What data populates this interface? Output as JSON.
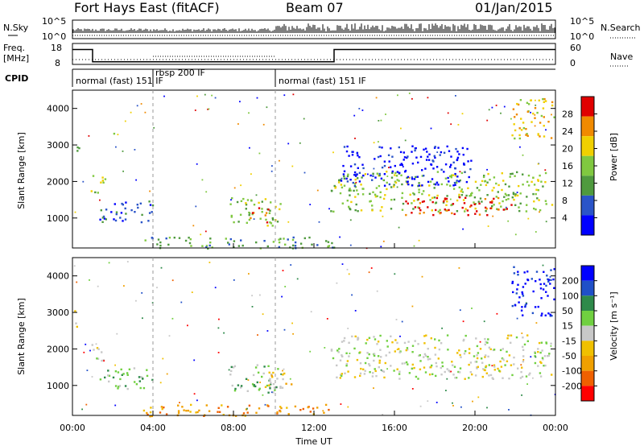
{
  "header": {
    "title": "Fort Hays East (fitACF)",
    "beam": "Beam 07",
    "date": "01/Jan/2015"
  },
  "strip": {
    "nsky_label": "N.Sky",
    "nsky_ticks": [
      "10^5",
      "10^0"
    ],
    "nsearch_label": "N.Search",
    "nsearch_ticks": [
      "10^5",
      "10^0"
    ],
    "freq_label_line1": "Freq.",
    "freq_label_line2": "[MHz]",
    "freq_ticks": [
      "18",
      "8"
    ],
    "nave_label": "Nave",
    "nave_ticks": [
      "60",
      "0"
    ],
    "cpid_label": "CPID"
  },
  "cpid_segments": [
    {
      "label": "normal (fast) 151 IF",
      "start_hour": 0.0
    },
    {
      "label": "rbsp 200 IF",
      "start_hour": 4.0
    },
    {
      "label": "normal (fast) 151 IF",
      "start_hour": 10.0
    }
  ],
  "freq_series": [
    [
      0,
      15.5
    ],
    [
      1.0,
      15.5
    ],
    [
      1.0,
      8.6
    ],
    [
      13.0,
      8.6
    ],
    [
      13.0,
      15.5
    ],
    [
      24,
      15.5
    ]
  ],
  "power_panel": {
    "ylabel": "Slant Range [km]",
    "colorbar_label": "Power [dB]",
    "colorbar_ticks": [
      "28",
      "24",
      "20",
      "16",
      "12",
      "8",
      "4"
    ]
  },
  "velocity_panel": {
    "ylabel": "Slant Range [km]",
    "colorbar_label": "Velocity [m s⁻¹]",
    "colorbar_ticks": [
      "200",
      "100",
      "50",
      "15",
      "-15",
      "-50",
      "-100",
      "-200"
    ]
  },
  "xaxis": {
    "label": "Time UT",
    "ticks": [
      "00:00",
      "04:00",
      "08:00",
      "12:00",
      "16:00",
      "20:00",
      "00:00"
    ]
  },
  "chart_data": [
    {
      "type": "heatmap",
      "title": "Power [dB]",
      "ylabel": "Slant Range [km]",
      "xlabel": "Time UT",
      "xlim": [
        0,
        24
      ],
      "ylim": [
        180,
        4500
      ],
      "yticks": [
        1000,
        2000,
        3000,
        4000
      ],
      "colorscale": [
        "#0000ff",
        "#2a54c8",
        "#4f9a3e",
        "#80c840",
        "#f0d000",
        "#f08a00",
        "#e00000"
      ],
      "scale_range": [
        0,
        30
      ],
      "regions": [
        {
          "t0": 0.0,
          "t1": 0.3,
          "r0": 2600,
          "r1": 3100,
          "level": 2
        },
        {
          "t0": 0.9,
          "t1": 1.6,
          "r0": 1700,
          "r1": 2300,
          "level": 3
        },
        {
          "t0": 1.3,
          "t1": 4.0,
          "r0": 900,
          "r1": 1500,
          "level": 1
        },
        {
          "t0": 2.0,
          "t1": 2.1,
          "r0": 3100,
          "r1": 3600,
          "level": 4
        },
        {
          "t0": 7.8,
          "t1": 10.3,
          "r0": 800,
          "r1": 1600,
          "level": 3
        },
        {
          "t0": 8.8,
          "t1": 9.7,
          "r0": 900,
          "r1": 1300,
          "level": 5
        },
        {
          "t0": 12.8,
          "t1": 23.8,
          "r0": 1200,
          "r1": 2300,
          "level": 3
        },
        {
          "t0": 16.5,
          "t1": 21.8,
          "r0": 1100,
          "r1": 1600,
          "level": 6
        },
        {
          "t0": 13.3,
          "t1": 19.8,
          "r0": 1900,
          "r1": 3000,
          "level": 0
        },
        {
          "t0": 21.8,
          "t1": 23.9,
          "r0": 3200,
          "r1": 4300,
          "level": 4
        },
        {
          "t0": 3.5,
          "t1": 13.0,
          "r0": 180,
          "r1": 500,
          "level": 2
        }
      ]
    },
    {
      "type": "heatmap",
      "title": "Velocity [m s⁻¹]",
      "ylabel": "Slant Range [km]",
      "xlabel": "Time UT",
      "xlim": [
        0,
        24
      ],
      "ylim": [
        180,
        4500
      ],
      "yticks": [
        1000,
        2000,
        3000,
        4000
      ],
      "colorscale": [
        "#ff0000",
        "#f06000",
        "#f0a000",
        "#f0c000",
        "#c8c8c8",
        "#70d040",
        "#2e8a4a",
        "#2050c8",
        "#0000ff"
      ],
      "scale_range": [
        -250,
        250
      ],
      "regions": [
        {
          "t0": 0.0,
          "t1": 0.3,
          "r0": 2600,
          "r1": 3100,
          "level": 4
        },
        {
          "t0": 0.9,
          "t1": 1.6,
          "r0": 1700,
          "r1": 2300,
          "level": 4
        },
        {
          "t0": 1.3,
          "t1": 4.0,
          "r0": 900,
          "r1": 1500,
          "level": 5
        },
        {
          "t0": 7.8,
          "t1": 10.3,
          "r0": 800,
          "r1": 1600,
          "level": 5
        },
        {
          "t0": 9.5,
          "t1": 11.0,
          "r0": 900,
          "r1": 1400,
          "level": 3
        },
        {
          "t0": 12.8,
          "t1": 23.8,
          "r0": 1200,
          "r1": 2400,
          "level": 4
        },
        {
          "t0": 21.8,
          "t1": 23.9,
          "r0": 2900,
          "r1": 4300,
          "level": 8
        },
        {
          "t0": 3.5,
          "t1": 13.0,
          "r0": 180,
          "r1": 500,
          "level": 2
        }
      ]
    }
  ]
}
